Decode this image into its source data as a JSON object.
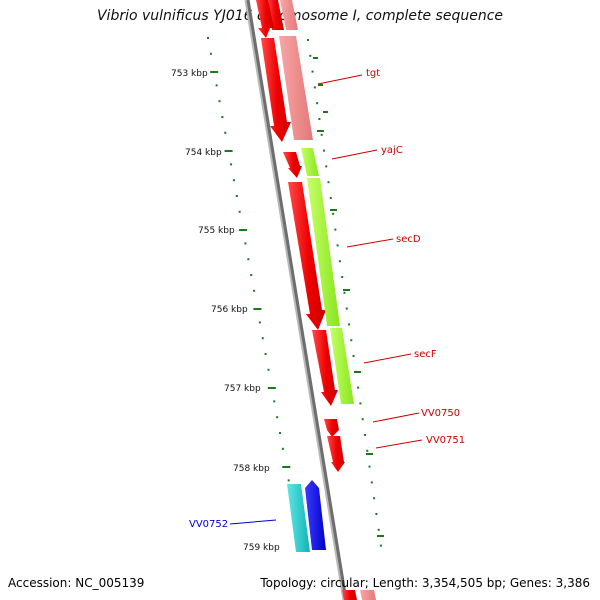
{
  "title": "Vibrio vulnificus YJ016 chromosome I, complete sequence",
  "accession": "Accession: NC_005139",
  "topology": "Topology: circular; Length: 3,354,505 bp; Genes: 3,386",
  "colors": {
    "backbone": "#7a7a7a",
    "tick": "#1a7a1a",
    "gene_red": "#ff0000",
    "gene_pink": "#f08a8a",
    "gene_green": "#aaff33",
    "gene_cyan": "#22cccc",
    "gene_blue": "#0000ee",
    "label_red": "#cc0000",
    "label_blue": "#0000cc"
  },
  "scale_labels": [
    "753 kbp",
    "754 kbp",
    "755 kbp",
    "756 kbp",
    "757 kbp",
    "758 kbp",
    "759 kbp"
  ],
  "gene_labels": [
    {
      "name": "tgt",
      "color": "red"
    },
    {
      "name": "yajC",
      "color": "red"
    },
    {
      "name": "secD",
      "color": "red"
    },
    {
      "name": "secF",
      "color": "red"
    },
    {
      "name": "VV0750",
      "color": "red"
    },
    {
      "name": "VV0751",
      "color": "red"
    },
    {
      "name": "VV0752",
      "color": "blue"
    }
  ]
}
